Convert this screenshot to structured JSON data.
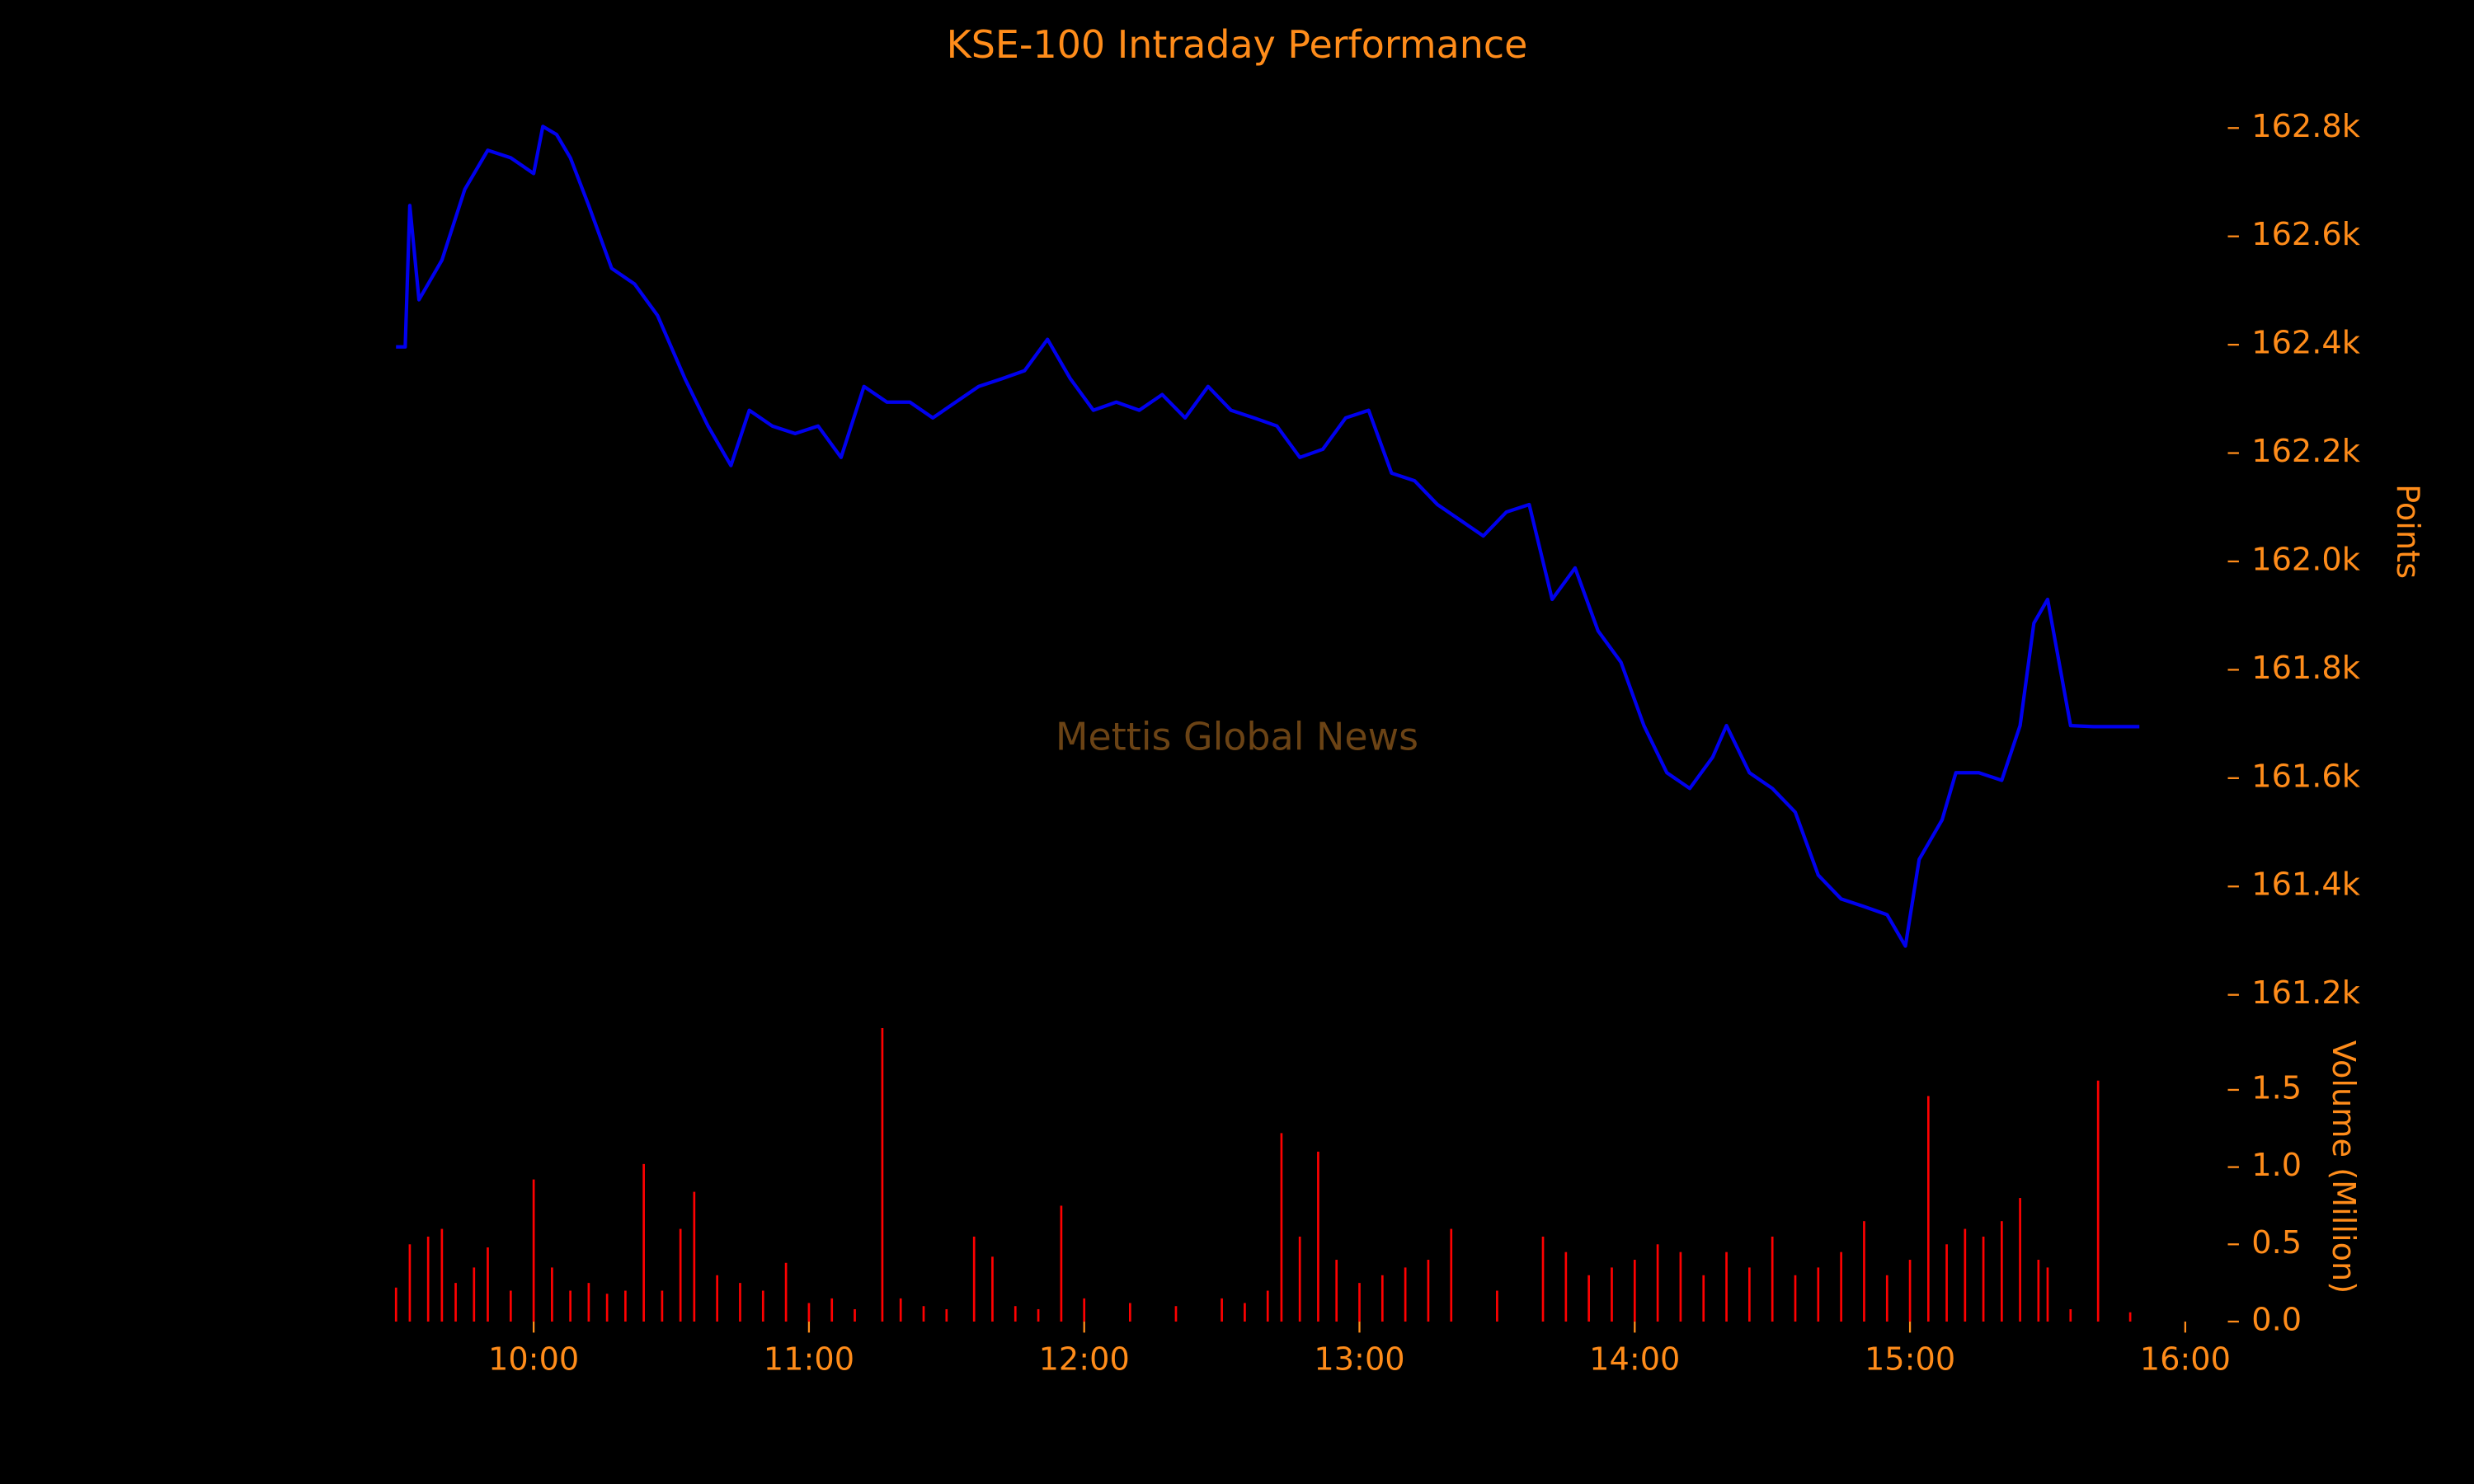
{
  "chart_data": [
    {
      "type": "line",
      "title": "KSE-100 Intraday Performance",
      "annotation": "Mettis Global News",
      "ylabel": "Points",
      "color": "#0000ee",
      "xlim": [
        "09:30",
        "16:00"
      ],
      "xticks": [
        "10:00",
        "11:00",
        "12:00",
        "13:00",
        "14:00",
        "15:00",
        "16:00"
      ],
      "ylim": [
        161150,
        162850
      ],
      "yticks": [
        {
          "value": 161200,
          "label": "161.2k"
        },
        {
          "value": 161400,
          "label": "161.4k"
        },
        {
          "value": 161600,
          "label": "161.6k"
        },
        {
          "value": 161800,
          "label": "161.8k"
        },
        {
          "value": 162000,
          "label": "162.0k"
        },
        {
          "value": 162200,
          "label": "162.2k"
        },
        {
          "value": 162400,
          "label": "162.4k"
        },
        {
          "value": 162600,
          "label": "162.6k"
        },
        {
          "value": 162800,
          "label": "162.8k"
        }
      ],
      "x": [
        "09:30",
        "09:32",
        "09:33",
        "09:35",
        "09:40",
        "09:45",
        "09:50",
        "09:55",
        "10:00",
        "10:02",
        "10:05",
        "10:08",
        "10:12",
        "10:17",
        "10:22",
        "10:27",
        "10:33",
        "10:38",
        "10:43",
        "10:47",
        "10:52",
        "10:57",
        "11:02",
        "11:07",
        "11:12",
        "11:17",
        "11:22",
        "11:27",
        "11:32",
        "11:37",
        "11:42",
        "11:47",
        "11:52",
        "11:57",
        "12:02",
        "12:07",
        "12:12",
        "12:17",
        "12:22",
        "12:27",
        "12:32",
        "12:37",
        "12:42",
        "12:47",
        "12:52",
        "12:57",
        "13:02",
        "13:07",
        "13:12",
        "13:17",
        "13:22",
        "13:27",
        "13:32",
        "13:37",
        "13:42",
        "13:47",
        "13:52",
        "13:57",
        "14:02",
        "14:07",
        "14:12",
        "14:17",
        "14:20",
        "14:25",
        "14:30",
        "14:35",
        "14:40",
        "14:45",
        "14:50",
        "14:55",
        "14:59",
        "15:02",
        "15:07",
        "15:10",
        "15:15",
        "15:20",
        "15:24",
        "15:27",
        "15:30",
        "15:35",
        "15:40",
        "15:50"
      ],
      "values": [
        162396,
        162396,
        162657,
        162483,
        162556,
        162687,
        162759,
        162745,
        162716,
        162803,
        162788,
        162745,
        162657,
        162541,
        162512,
        162454,
        162337,
        162250,
        162177,
        162279,
        162250,
        162236,
        162250,
        162192,
        162323,
        162294,
        162294,
        162265,
        162294,
        162323,
        162337,
        162352,
        162410,
        162337,
        162279,
        162294,
        162279,
        162308,
        162265,
        162323,
        162279,
        162265,
        162250,
        162192,
        162207,
        162265,
        162279,
        162163,
        162149,
        162105,
        162076,
        162047,
        162091,
        162105,
        161930,
        161988,
        161872,
        161814,
        161697,
        161610,
        161581,
        161639,
        161697,
        161610,
        161581,
        161537,
        161421,
        161377,
        161363,
        161348,
        161290,
        161450,
        161523,
        161610,
        161610,
        161596,
        161697,
        161886,
        161930,
        161697,
        161695,
        161695
      ]
    },
    {
      "type": "bar",
      "ylabel": "Volume (Million)",
      "color": "#ff0000",
      "xlim": [
        "09:30",
        "16:00"
      ],
      "ylim": [
        0,
        1.95
      ],
      "yticks": [
        {
          "value": 0,
          "label": "0.0"
        },
        0.5,
        {
          "value": 1,
          "label": "1.0"
        },
        1.5
      ],
      "x": [
        "09:30",
        "09:33",
        "09:37",
        "09:40",
        "09:43",
        "09:47",
        "09:50",
        "09:55",
        "10:00",
        "10:04",
        "10:08",
        "10:12",
        "10:16",
        "10:20",
        "10:24",
        "10:28",
        "10:32",
        "10:35",
        "10:40",
        "10:45",
        "10:50",
        "10:55",
        "11:00",
        "11:05",
        "11:10",
        "11:16",
        "11:20",
        "11:25",
        "11:30",
        "11:36",
        "11:40",
        "11:45",
        "11:50",
        "11:55",
        "12:00",
        "12:10",
        "12:20",
        "12:30",
        "12:35",
        "12:40",
        "12:43",
        "12:47",
        "12:51",
        "12:55",
        "13:00",
        "13:05",
        "13:10",
        "13:15",
        "13:20",
        "13:30",
        "13:40",
        "13:45",
        "13:50",
        "13:55",
        "14:00",
        "14:05",
        "14:10",
        "14:15",
        "14:20",
        "14:25",
        "14:30",
        "14:35",
        "14:40",
        "14:45",
        "14:50",
        "14:55",
        "15:00",
        "15:04",
        "15:08",
        "15:12",
        "15:16",
        "15:20",
        "15:24",
        "15:28",
        "15:30",
        "15:35",
        "15:41",
        "15:48"
      ],
      "values": [
        0.22,
        0.5,
        0.55,
        0.6,
        0.25,
        0.35,
        0.48,
        0.2,
        0.92,
        0.35,
        0.2,
        0.25,
        0.18,
        0.2,
        1.02,
        0.2,
        0.6,
        0.84,
        0.3,
        0.25,
        0.2,
        0.38,
        0.12,
        0.15,
        0.08,
        1.9,
        0.15,
        0.1,
        0.08,
        0.55,
        0.42,
        0.1,
        0.08,
        0.75,
        0.15,
        0.12,
        0.1,
        0.15,
        0.12,
        0.2,
        1.22,
        0.55,
        1.1,
        0.4,
        0.25,
        0.3,
        0.35,
        0.4,
        0.6,
        0.2,
        0.55,
        0.45,
        0.3,
        0.35,
        0.4,
        0.5,
        0.45,
        0.3,
        0.45,
        0.35,
        0.55,
        0.3,
        0.35,
        0.45,
        0.65,
        0.3,
        0.4,
        1.46,
        0.5,
        0.6,
        0.55,
        0.65,
        0.8,
        0.4,
        0.35,
        0.08,
        1.56,
        0.06
      ]
    }
  ]
}
